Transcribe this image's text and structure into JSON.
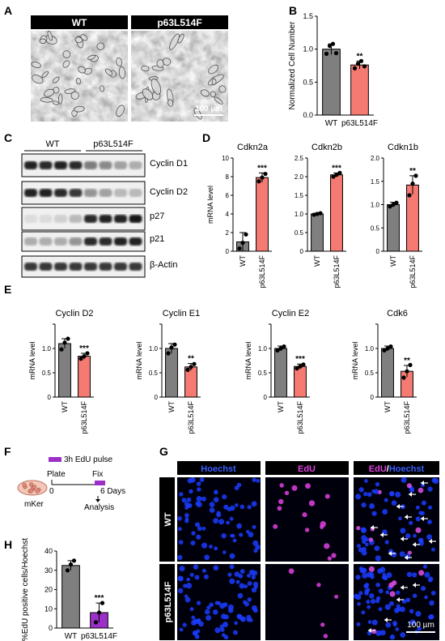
{
  "panels": {
    "A": "A",
    "B": "B",
    "C": "C",
    "D": "D",
    "E": "E",
    "F": "F",
    "G": "G",
    "H": "H"
  },
  "colors": {
    "wt": "#7f7f7f",
    "mut": "#f47a72",
    "purple": "#9b2fc7",
    "hoechst": "#1a3cff",
    "edu": "#e040e0"
  },
  "panel_a": {
    "wt_label": "WT",
    "mut_label": "p63L514F",
    "scale": "100 µm"
  },
  "panel_c": {
    "wt_label": "WT",
    "mut_label": "p63L514F",
    "bands": [
      "Cyclin D1",
      "Cyclin D2",
      "p27",
      "p21",
      "β-Actin"
    ]
  },
  "panel_f": {
    "pulse": "3h EdU pulse",
    "plate": "Plate",
    "fix": "Fix",
    "zero": "0",
    "days": "6 Days",
    "analysis": "Analysis",
    "cells": "mKer"
  },
  "panel_g": {
    "cols": [
      "Hoechst",
      "EdU",
      "EdU/Hoechst"
    ],
    "merge_a": "EdU",
    "merge_sep": "/",
    "merge_b": "Hoechst",
    "rows": [
      "WT",
      "p63L514F"
    ],
    "scale": "100 µm"
  },
  "chart_data": [
    {
      "id": "B",
      "type": "bar",
      "categories": [
        "WT",
        "p63L514F"
      ],
      "values": [
        1.0,
        0.76
      ],
      "errors": [
        0.08,
        0.06
      ],
      "points": [
        [
          0.93,
          1.05,
          1.08,
          0.94
        ],
        [
          0.71,
          0.78,
          0.82,
          0.74
        ]
      ],
      "sig": [
        "",
        "**"
      ],
      "ylabel": "Normalized Cell Number",
      "ylim": [
        0,
        1.5
      ],
      "yticks": [
        0.0,
        0.5,
        1.0,
        1.5
      ],
      "ytick_labels": [
        "0.0",
        "0.5",
        "1.0",
        "1.5"
      ]
    },
    {
      "id": "D1",
      "type": "bar",
      "title": "Cdkn2a",
      "categories": [
        "WT",
        "p63L514F"
      ],
      "values": [
        1.0,
        7.9
      ],
      "errors": [
        1.0,
        0.5
      ],
      "points": [
        [
          0.3,
          0.9,
          1.8
        ],
        [
          7.5,
          7.9,
          8.3
        ]
      ],
      "sig": [
        "",
        "***"
      ],
      "ylabel": "mRNA level",
      "ylim": [
        0,
        10
      ],
      "yticks": [
        0,
        2,
        4,
        6,
        8,
        10
      ],
      "ytick_labels": [
        "0",
        "2",
        "4",
        "6",
        "8",
        "10"
      ]
    },
    {
      "id": "D2",
      "type": "bar",
      "title": "Cdkn2b",
      "categories": [
        "WT",
        "p63L514F"
      ],
      "values": [
        1.0,
        2.05
      ],
      "errors": [
        0.02,
        0.05
      ],
      "points": [
        [
          0.98,
          1.0,
          1.02
        ],
        [
          2.0,
          2.05,
          2.1
        ]
      ],
      "sig": [
        "",
        "***"
      ],
      "ylabel": "",
      "ylim": [
        0,
        2.5
      ],
      "yticks": [
        0,
        0.5,
        1.0,
        1.5,
        2.0,
        2.5
      ],
      "ytick_labels": [
        "0",
        "0.5",
        "1.0",
        "1.5",
        "2.0",
        "2.5"
      ]
    },
    {
      "id": "D3",
      "type": "bar",
      "title": "Cdkn1b",
      "categories": [
        "WT",
        "p63L514F"
      ],
      "values": [
        1.0,
        1.42
      ],
      "errors": [
        0.05,
        0.2
      ],
      "points": [
        [
          0.96,
          1.0,
          1.04
        ],
        [
          1.2,
          1.45,
          1.62
        ]
      ],
      "sig": [
        "",
        "**"
      ],
      "ylabel": "",
      "ylim": [
        0,
        2.0
      ],
      "yticks": [
        0,
        0.5,
        1.0,
        1.5,
        2.0
      ],
      "ytick_labels": [
        "0",
        "0.5",
        "1.0",
        "1.5",
        "2.0"
      ]
    },
    {
      "id": "E1",
      "type": "bar",
      "title": "Cyclin D2",
      "categories": [
        "WT",
        "p63L514F"
      ],
      "values": [
        1.1,
        0.84
      ],
      "errors": [
        0.1,
        0.06
      ],
      "points": [
        [
          0.98,
          1.12,
          1.2
        ],
        [
          0.79,
          0.84,
          0.9
        ]
      ],
      "sig": [
        "",
        "***"
      ],
      "ylabel": "mRNA level",
      "ylim": [
        0,
        1.5
      ],
      "yticks": [
        0,
        0.5,
        1.0,
        1.5
      ],
      "ytick_labels": [
        "0",
        "0.5",
        "1.0",
        ""
      ]
    },
    {
      "id": "E2",
      "type": "bar",
      "title": "Cyclin E1",
      "categories": [
        "WT",
        "p63L514F"
      ],
      "values": [
        1.0,
        0.62
      ],
      "errors": [
        0.1,
        0.07
      ],
      "points": [
        [
          0.9,
          1.02,
          1.08
        ],
        [
          0.56,
          0.62,
          0.68
        ]
      ],
      "sig": [
        "",
        "**"
      ],
      "ylabel": "mRNA level",
      "ylim": [
        0,
        1.5
      ],
      "yticks": [
        0,
        0.5,
        1.0,
        1.5
      ],
      "ytick_labels": [
        "0",
        "0.5",
        "1.0",
        ""
      ]
    },
    {
      "id": "E3",
      "type": "bar",
      "title": "Cyclin E2",
      "categories": [
        "WT",
        "p63L514F"
      ],
      "values": [
        1.0,
        0.63
      ],
      "errors": [
        0.05,
        0.05
      ],
      "points": [
        [
          0.96,
          1.0,
          1.04
        ],
        [
          0.59,
          0.63,
          0.67
        ]
      ],
      "sig": [
        "",
        "***"
      ],
      "ylabel": "mRNA level",
      "ylim": [
        0,
        1.5
      ],
      "yticks": [
        0,
        0.5,
        1.0,
        1.5
      ],
      "ytick_labels": [
        "0",
        "0.5",
        "1.0",
        ""
      ]
    },
    {
      "id": "E4",
      "type": "bar",
      "title": "Cdk6",
      "categories": [
        "WT",
        "p63L514F"
      ],
      "values": [
        1.0,
        0.53
      ],
      "errors": [
        0.05,
        0.12
      ],
      "points": [
        [
          0.96,
          1.0,
          1.04
        ],
        [
          0.4,
          0.53,
          0.66
        ]
      ],
      "sig": [
        "",
        "**"
      ],
      "ylabel": "mRNA level",
      "ylim": [
        0,
        1.5
      ],
      "yticks": [
        0,
        0.5,
        1.0,
        1.5
      ],
      "ytick_labels": [
        "0",
        "0.5",
        "1.0",
        ""
      ]
    },
    {
      "id": "H",
      "type": "bar",
      "categories": [
        "WT",
        "p63L514F"
      ],
      "values": [
        32.5,
        8.0
      ],
      "errors": [
        2.5,
        5.0
      ],
      "points": [
        [
          30.0,
          33.0,
          35.0
        ],
        [
          3.0,
          8.0,
          13.0
        ]
      ],
      "sig": [
        "",
        "***"
      ],
      "ylabel": "%EdU positive cells/Hoechst",
      "ylim": [
        0,
        40
      ],
      "yticks": [
        0,
        10,
        20,
        30,
        40
      ],
      "ytick_labels": [
        "0",
        "10",
        "20",
        "30",
        "40"
      ]
    }
  ]
}
